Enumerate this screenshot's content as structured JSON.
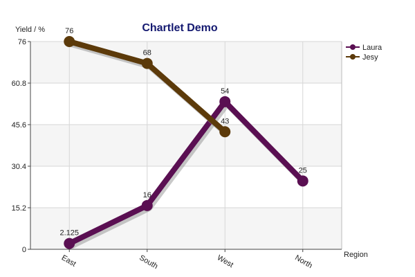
{
  "chart_data": {
    "type": "line",
    "title": "Chartlet Demo",
    "xlabel": "Region",
    "ylabel": "Yield / %",
    "categories": [
      "East",
      "South",
      "West",
      "North"
    ],
    "ylim": [
      0,
      76
    ],
    "yticks": [
      "0",
      "15.2",
      "30.4",
      "45.6",
      "60.8",
      "76"
    ],
    "grid": true,
    "legend_position": "top-right",
    "series": [
      {
        "name": "Laura",
        "color": "#5a0f52",
        "values": [
          2.125,
          16,
          54,
          25
        ],
        "labels": [
          "2.125",
          "16",
          "54",
          "25"
        ]
      },
      {
        "name": "Jesy",
        "color": "#5c3a0a",
        "values": [
          76,
          68,
          43,
          null
        ],
        "labels": [
          "76",
          "68",
          "43",
          ""
        ]
      }
    ]
  }
}
